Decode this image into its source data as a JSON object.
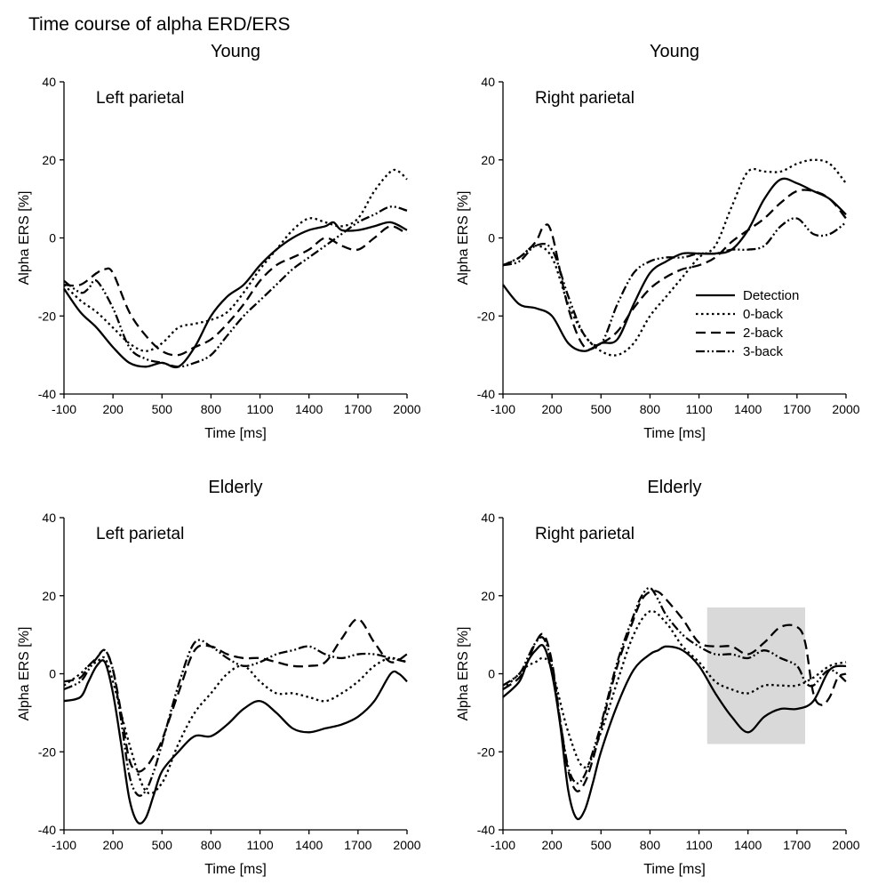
{
  "title": "Time course of alpha ERD/ERS",
  "legend": [
    {
      "name": "Detection",
      "dash": "solid"
    },
    {
      "name": "0-back",
      "dash": "dotted"
    },
    {
      "name": "2-back",
      "dash": "dashed"
    },
    {
      "name": "3-back",
      "dash": "dashdotdot"
    }
  ],
  "chart_data": [
    {
      "type": "line",
      "title": "Young",
      "annotation": "Left parietal",
      "xlabel": "Time [ms]",
      "ylabel": "Alpha ERS [%]",
      "xlim": [
        -100,
        2000
      ],
      "ylim": [
        -40,
        40
      ],
      "xticks": [
        -100,
        200,
        500,
        800,
        1100,
        1400,
        1700,
        2000
      ],
      "yticks": [
        -40,
        -20,
        0,
        20,
        40
      ],
      "legend": "none",
      "series": [
        {
          "name": "Detection",
          "x": [
            -100,
            0,
            100,
            200,
            300,
            400,
            500,
            600,
            700,
            800,
            900,
            1000,
            1100,
            1200,
            1300,
            1400,
            1500,
            1550,
            1600,
            1700,
            1800,
            1900,
            2000
          ],
          "y": [
            -13,
            -19,
            -23,
            -28,
            -32,
            -33,
            -32,
            -33,
            -28,
            -20,
            -15,
            -12,
            -7,
            -3,
            0,
            2,
            3,
            4,
            2,
            2,
            3,
            4,
            2
          ]
        },
        {
          "name": "0-back",
          "x": [
            -100,
            0,
            100,
            200,
            300,
            400,
            500,
            600,
            700,
            800,
            900,
            1000,
            1100,
            1200,
            1300,
            1400,
            1500,
            1600,
            1700,
            1800,
            1900,
            1950,
            2000
          ],
          "y": [
            -12,
            -16,
            -19,
            -23,
            -27,
            -29,
            -27,
            -23,
            -22,
            -21,
            -19,
            -14,
            -8,
            -3,
            2,
            5,
            4,
            3,
            5,
            12,
            17,
            17,
            15
          ]
        },
        {
          "name": "2-back",
          "x": [
            -100,
            0,
            100,
            150,
            200,
            300,
            400,
            500,
            600,
            700,
            800,
            900,
            1000,
            1100,
            1200,
            1300,
            1400,
            1500,
            1600,
            1700,
            1800,
            1900,
            2000
          ],
          "y": [
            -12,
            -12,
            -9,
            -8,
            -9,
            -19,
            -25,
            -29,
            -30,
            -28,
            -26,
            -22,
            -17,
            -11,
            -7,
            -5,
            -3,
            0,
            -2,
            -3,
            0,
            3,
            1
          ]
        },
        {
          "name": "3-back",
          "x": [
            -100,
            0,
            50,
            100,
            200,
            300,
            400,
            500,
            600,
            700,
            800,
            900,
            1000,
            1100,
            1200,
            1300,
            1400,
            1500,
            1600,
            1700,
            1800,
            1900,
            2000
          ],
          "y": [
            -11,
            -14,
            -13,
            -11,
            -18,
            -28,
            -31,
            -32,
            -33,
            -32,
            -30,
            -25,
            -20,
            -16,
            -12,
            -8,
            -5,
            -2,
            1,
            4,
            6,
            8,
            7
          ]
        }
      ]
    },
    {
      "type": "line",
      "title": "Young",
      "annotation": "Right parietal",
      "xlabel": "Time [ms]",
      "ylabel": "Alpha ERS [%]",
      "xlim": [
        -100,
        2000
      ],
      "ylim": [
        -40,
        40
      ],
      "xticks": [
        -100,
        200,
        500,
        800,
        1100,
        1400,
        1700,
        2000
      ],
      "yticks": [
        -40,
        -20,
        0,
        20,
        40
      ],
      "legend": "right",
      "series": [
        {
          "name": "Detection",
          "x": [
            -100,
            0,
            100,
            200,
            300,
            400,
            500,
            600,
            700,
            800,
            900,
            1000,
            1100,
            1200,
            1300,
            1400,
            1500,
            1600,
            1700,
            1800,
            1900,
            2000
          ],
          "y": [
            -12,
            -17,
            -18,
            -20,
            -27,
            -29,
            -27,
            -26,
            -17,
            -9,
            -6,
            -4,
            -4,
            -4,
            -3,
            2,
            10,
            15,
            14,
            12,
            10,
            6
          ]
        },
        {
          "name": "0-back",
          "x": [
            -100,
            0,
            100,
            200,
            300,
            400,
            500,
            600,
            700,
            800,
            900,
            1000,
            1100,
            1200,
            1300,
            1400,
            1500,
            1600,
            1700,
            1800,
            1900,
            2000
          ],
          "y": [
            -7,
            -5,
            -2,
            -5,
            -17,
            -25,
            -29,
            -30,
            -27,
            -20,
            -15,
            -10,
            -5,
            -2,
            8,
            17,
            17,
            17,
            19,
            20,
            19,
            14
          ]
        },
        {
          "name": "2-back",
          "x": [
            -100,
            0,
            100,
            150,
            200,
            300,
            400,
            500,
            600,
            700,
            800,
            900,
            1000,
            1100,
            1200,
            1300,
            1400,
            1500,
            1600,
            1700,
            1800,
            1900,
            2000
          ],
          "y": [
            -7,
            -5,
            -1,
            3,
            1,
            -18,
            -28,
            -27,
            -24,
            -18,
            -13,
            -10,
            -8,
            -7,
            -5,
            -1,
            2,
            5,
            9,
            12,
            12,
            10,
            5
          ]
        },
        {
          "name": "3-back",
          "x": [
            -100,
            0,
            100,
            200,
            300,
            400,
            500,
            600,
            700,
            800,
            900,
            1000,
            1100,
            1200,
            1300,
            1400,
            1500,
            1600,
            1700,
            1800,
            1900,
            2000
          ],
          "y": [
            -7,
            -6,
            -2,
            -3,
            -15,
            -25,
            -27,
            -17,
            -9,
            -6,
            -5,
            -5,
            -4,
            -4,
            -3,
            -3,
            -2,
            3,
            5,
            1,
            1,
            4
          ]
        }
      ]
    },
    {
      "type": "line",
      "title": "Elderly",
      "annotation": "Left parietal",
      "xlabel": "Time [ms]",
      "ylabel": "Alpha ERS [%]",
      "xlim": [
        -100,
        2000
      ],
      "ylim": [
        -40,
        40
      ],
      "xticks": [
        -100,
        200,
        500,
        800,
        1100,
        1400,
        1700,
        2000
      ],
      "yticks": [
        -40,
        -20,
        0,
        20,
        40
      ],
      "legend": "none",
      "series": [
        {
          "name": "Detection",
          "x": [
            -100,
            0,
            50,
            100,
            150,
            200,
            250,
            300,
            350,
            400,
            450,
            500,
            600,
            700,
            800,
            900,
            1000,
            1100,
            1200,
            1300,
            1400,
            1500,
            1600,
            1700,
            1800,
            1900,
            1950,
            2000
          ],
          "y": [
            -7,
            -6,
            -2,
            2,
            3,
            -5,
            -18,
            -32,
            -38,
            -37,
            -31,
            -25,
            -20,
            -16,
            -16,
            -13,
            -9,
            -7,
            -10,
            -14,
            -15,
            -14,
            -13,
            -11,
            -7,
            0,
            0,
            -2
          ]
        },
        {
          "name": "0-back",
          "x": [
            -100,
            0,
            50,
            100,
            150,
            200,
            300,
            400,
            500,
            600,
            700,
            800,
            900,
            1000,
            1100,
            1200,
            1300,
            1400,
            1500,
            1600,
            1700,
            1800,
            1900,
            2000
          ],
          "y": [
            -3,
            0,
            2,
            3,
            4,
            -2,
            -18,
            -30,
            -28,
            -18,
            -10,
            -5,
            0,
            2,
            -2,
            -5,
            -5,
            -6,
            -7,
            -5,
            -2,
            2,
            4,
            3
          ]
        },
        {
          "name": "2-back",
          "x": [
            -100,
            0,
            50,
            100,
            150,
            200,
            250,
            300,
            350,
            400,
            450,
            500,
            600,
            700,
            800,
            900,
            1000,
            1100,
            1200,
            1300,
            1400,
            1500,
            1600,
            1700,
            1800,
            1900,
            2000
          ],
          "y": [
            -2,
            -1,
            2,
            4,
            6,
            1,
            -10,
            -22,
            -25,
            -24,
            -21,
            -17,
            -5,
            6,
            7,
            5,
            4,
            4,
            3,
            2,
            2,
            3,
            9,
            14,
            8,
            3,
            5
          ]
        },
        {
          "name": "3-back",
          "x": [
            -100,
            0,
            50,
            100,
            150,
            200,
            250,
            300,
            350,
            400,
            450,
            500,
            600,
            700,
            800,
            900,
            1000,
            1100,
            1200,
            1300,
            1400,
            1500,
            1600,
            1700,
            1800,
            1900,
            2000
          ],
          "y": [
            -4,
            -2,
            1,
            4,
            6,
            1,
            -12,
            -26,
            -31,
            -30,
            -25,
            -18,
            -3,
            8,
            7,
            4,
            2,
            3,
            5,
            6,
            7,
            5,
            4,
            5,
            5,
            4,
            3
          ]
        }
      ]
    },
    {
      "type": "line",
      "title": "Elderly",
      "annotation": "Right parietal",
      "xlabel": "Time [ms]",
      "ylabel": "Alpha ERS [%]",
      "xlim": [
        -100,
        2000
      ],
      "ylim": [
        -40,
        40
      ],
      "xticks": [
        -100,
        200,
        500,
        800,
        1100,
        1400,
        1700,
        2000
      ],
      "yticks": [
        -40,
        -20,
        0,
        20,
        40
      ],
      "legend": "none",
      "highlight": {
        "x": [
          1150,
          1750
        ],
        "y": [
          -18,
          17
        ]
      },
      "series": [
        {
          "name": "Detection",
          "x": [
            -100,
            0,
            50,
            100,
            150,
            200,
            250,
            300,
            350,
            400,
            450,
            500,
            600,
            700,
            800,
            850,
            900,
            1000,
            1100,
            1200,
            1300,
            1400,
            1500,
            1600,
            1700,
            1800,
            1900,
            2000
          ],
          "y": [
            -6,
            -2,
            3,
            6,
            7,
            0,
            -13,
            -30,
            -37,
            -35,
            -28,
            -20,
            -8,
            1,
            5,
            6,
            7,
            6,
            2,
            -5,
            -11,
            -15,
            -11,
            -9,
            -9,
            -7,
            1,
            2
          ]
        },
        {
          "name": "0-back",
          "x": [
            -100,
            0,
            50,
            100,
            150,
            200,
            300,
            400,
            500,
            600,
            700,
            800,
            900,
            1000,
            1100,
            1200,
            1300,
            1400,
            1500,
            1600,
            1700,
            1800,
            1900,
            2000
          ],
          "y": [
            -4,
            0,
            2,
            3,
            4,
            1,
            -15,
            -24,
            -15,
            -2,
            10,
            16,
            13,
            7,
            3,
            -2,
            -4,
            -5,
            -3,
            -3,
            -3,
            -1,
            2,
            3
          ]
        },
        {
          "name": "2-back",
          "x": [
            -100,
            0,
            50,
            100,
            150,
            200,
            250,
            300,
            350,
            400,
            450,
            500,
            600,
            700,
            750,
            800,
            850,
            900,
            1000,
            1100,
            1200,
            1300,
            1400,
            1500,
            1600,
            1700,
            1750,
            1800,
            1850,
            1900,
            1950,
            2000
          ],
          "y": [
            -4,
            -1,
            3,
            8,
            10,
            3,
            -12,
            -25,
            -30,
            -28,
            -22,
            -14,
            2,
            14,
            19,
            21,
            21,
            19,
            14,
            8,
            7,
            7,
            5,
            8,
            12,
            12,
            8,
            -5,
            -8,
            -6,
            -1,
            0
          ]
        },
        {
          "name": "3-back",
          "x": [
            -100,
            0,
            50,
            100,
            150,
            200,
            250,
            300,
            350,
            400,
            450,
            500,
            600,
            700,
            750,
            800,
            850,
            900,
            1000,
            1100,
            1200,
            1300,
            1400,
            1500,
            1600,
            1700,
            1750,
            1800,
            1900,
            2000
          ],
          "y": [
            -3,
            0,
            4,
            8,
            9,
            2,
            -12,
            -24,
            -28,
            -26,
            -20,
            -13,
            3,
            15,
            20,
            22,
            19,
            15,
            10,
            7,
            5,
            5,
            4,
            6,
            4,
            2,
            -2,
            -3,
            1,
            -2
          ]
        }
      ]
    }
  ]
}
